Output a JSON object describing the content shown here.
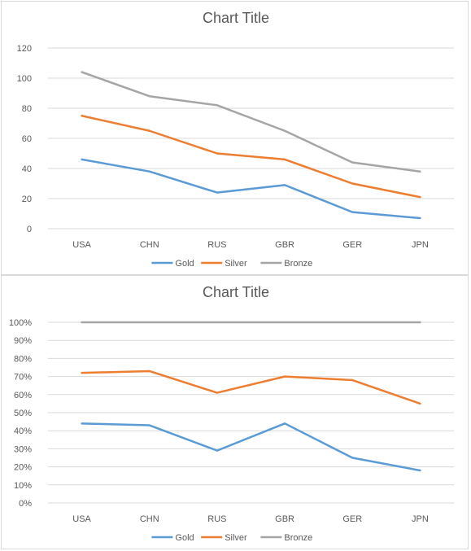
{
  "chart_data": [
    {
      "type": "line",
      "title": "Chart Title",
      "categories": [
        "USA",
        "CHN",
        "RUS",
        "GBR",
        "GER",
        "JPN"
      ],
      "series": [
        {
          "name": "Gold",
          "color": "#5b9bd5",
          "values": [
            46,
            38,
            24,
            29,
            11,
            7
          ]
        },
        {
          "name": "Silver",
          "color": "#ed7d31",
          "values": [
            75,
            65,
            50,
            46,
            30,
            21
          ]
        },
        {
          "name": "Bronze",
          "color": "#a5a5a5",
          "values": [
            104,
            88,
            82,
            65,
            44,
            38
          ]
        }
      ],
      "ylim": [
        0,
        120
      ],
      "yticks": [
        "0",
        "20",
        "40",
        "60",
        "80",
        "100",
        "120"
      ],
      "ytick_values": [
        0,
        20,
        40,
        60,
        80,
        100,
        120
      ],
      "grid": true,
      "legend": "bottom"
    },
    {
      "type": "line",
      "title": "Chart Title",
      "categories": [
        "USA",
        "CHN",
        "RUS",
        "GBR",
        "GER",
        "JPN"
      ],
      "series": [
        {
          "name": "Gold",
          "color": "#5b9bd5",
          "values": [
            0.44,
            0.43,
            0.29,
            0.44,
            0.25,
            0.18
          ]
        },
        {
          "name": "Silver",
          "color": "#ed7d31",
          "values": [
            0.72,
            0.73,
            0.61,
            0.7,
            0.68,
            0.55
          ]
        },
        {
          "name": "Bronze",
          "color": "#a5a5a5",
          "values": [
            1.0,
            1.0,
            1.0,
            1.0,
            1.0,
            1.0
          ]
        }
      ],
      "ylim": [
        0,
        1
      ],
      "yticks": [
        "0%",
        "10%",
        "20%",
        "30%",
        "40%",
        "50%",
        "60%",
        "70%",
        "80%",
        "90%",
        "100%"
      ],
      "ytick_values": [
        0,
        0.1,
        0.2,
        0.3,
        0.4,
        0.5,
        0.6,
        0.7,
        0.8,
        0.9,
        1.0
      ],
      "grid": true,
      "legend": "bottom"
    }
  ]
}
